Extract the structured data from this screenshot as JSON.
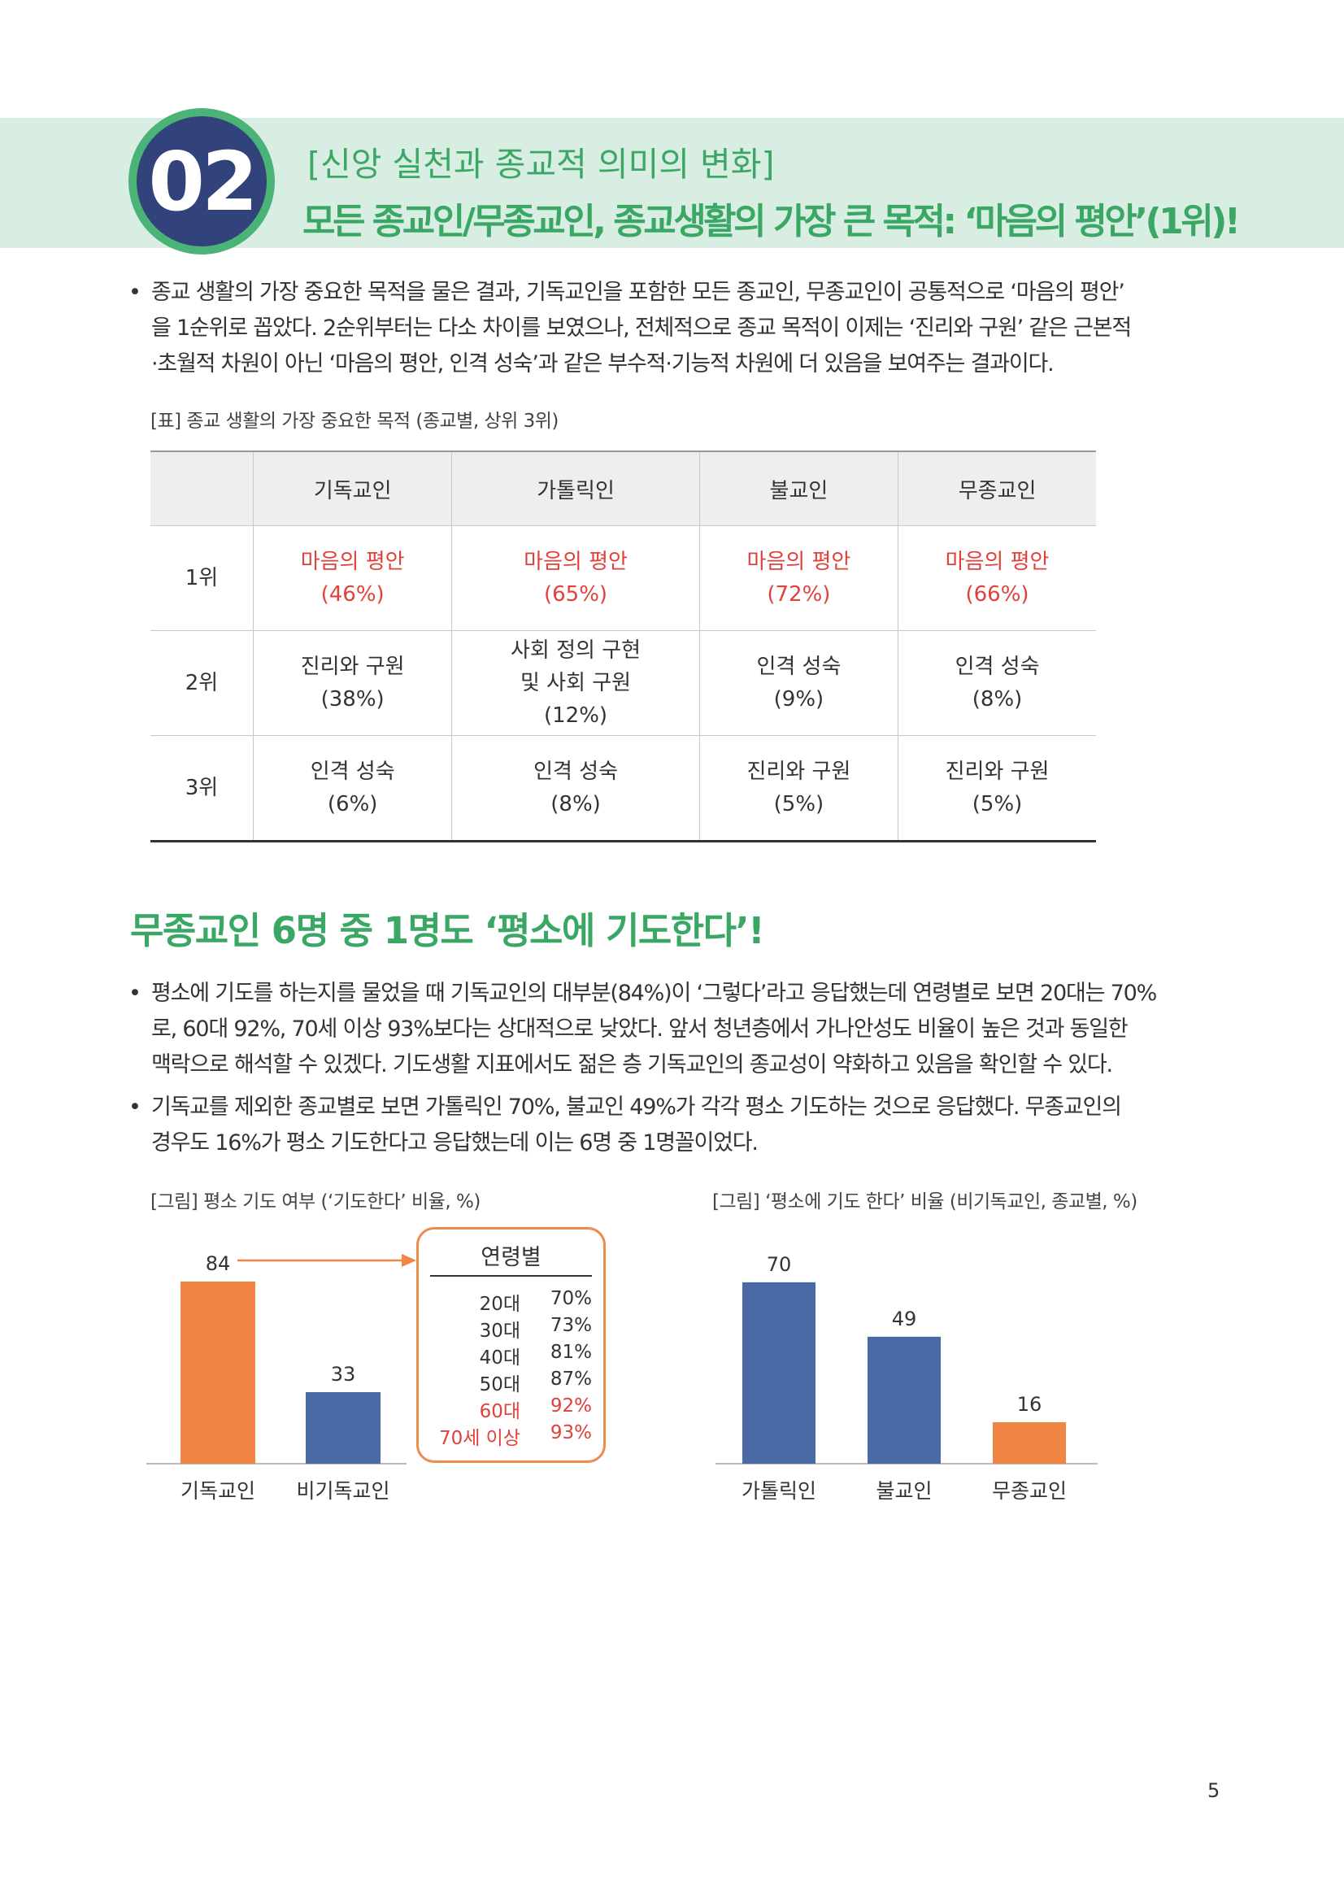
{
  "header": {
    "section_number": "02",
    "subtitle": "[신앙 실천과 종교적 의미의 변화]",
    "title": "모든 종교인/무종교인, 종교생활의 가장 큰 목적: ‘마음의 평안’(1위)!"
  },
  "intro": {
    "lines": [
      "종교 생활의 가장 중요한 목적을 물은 결과, 기독교인을 포함한 모든 종교인, 무종교인이 공통적으로 ‘마음의 평안’",
      "을 1순위로 꼽았다. 2순위부터는 다소 차이를 보였으나, 전체적으로 종교 목적이 이제는 ‘진리와 구원’ 같은 근본적",
      "·초월적 차원이 아닌 ‘마음의 평안, 인격 성숙’과 같은 부수적·기능적 차원에 더 있음을 보여주는 결과이다."
    ]
  },
  "table": {
    "caption": "[표] 종교 생활의 가장 중요한 목적 (종교별, 상위 3위)",
    "headers": [
      "",
      "기독교인",
      "가톨릭인",
      "불교인",
      "무종교인"
    ],
    "rows": [
      {
        "rank": "1위",
        "cells": [
          [
            "마음의 평안",
            "(46%)"
          ],
          [
            "마음의 평안",
            "(65%)"
          ],
          [
            "마음의 평안",
            "(72%)"
          ],
          [
            "마음의 평안",
            "(66%)"
          ]
        ]
      },
      {
        "rank": "2위",
        "cells": [
          [
            "진리와 구원",
            "(38%)"
          ],
          [
            "사회 정의 구현",
            "및 사회 구원",
            "(12%)"
          ],
          [
            "인격 성숙",
            "(9%)"
          ],
          [
            "인격 성숙",
            "(8%)"
          ]
        ]
      },
      {
        "rank": "3위",
        "cells": [
          [
            "인격 성숙",
            "(6%)"
          ],
          [
            "인격 성숙",
            "(8%)"
          ],
          [
            "진리와 구원",
            "(5%)"
          ],
          [
            "진리와 구원",
            "(5%)"
          ]
        ]
      }
    ]
  },
  "section2": {
    "title": "무종교인 6명 중 1명도 ‘평소에 기도한다’!",
    "bullet1": [
      "평소에 기도를 하는지를 물었을 때 기독교인의 대부분(84%)이 ‘그렇다’라고 응답했는데 연령별로 보면 20대는 70%",
      "로, 60대 92%, 70세 이상 93%보다는 상대적으로 낮았다. 앞서 청년층에서 가나안성도 비율이 높은 것과 동일한",
      "맥락으로 해석할 수 있겠다. 기도생활 지표에서도 젊은 층 기독교인의 종교성이 약화하고 있음을 확인할 수 있다."
    ],
    "bullet2": [
      "기독교를 제외한 종교별로 보면 가톨릭인 70%, 불교인 49%가 각각 평소 기도하는 것으로 응답했다. 무종교인의",
      "경우도 16%가 평소 기도한다고 응답했는데 이는 6명 중 1명꼴이었다."
    ]
  },
  "chart_data": [
    {
      "type": "bar",
      "title": "[그림] 평소 기도 여부 (‘기도한다’ 비율, %)",
      "categories": [
        "기독교인",
        "비기독교인"
      ],
      "values": [
        84,
        33
      ],
      "colors": [
        "#f08545",
        "#4a6aa5"
      ],
      "ylim": [
        0,
        90
      ],
      "inset": {
        "title": "연령별",
        "rows": [
          {
            "age": "20대",
            "value": "70%"
          },
          {
            "age": "30대",
            "value": "73%"
          },
          {
            "age": "40대",
            "value": "81%"
          },
          {
            "age": "50대",
            "value": "87%"
          },
          {
            "age": "60대",
            "value": "92%",
            "highlight": true
          },
          {
            "age": "70세 이상",
            "value": "93%",
            "highlight": true
          }
        ]
      }
    },
    {
      "type": "bar",
      "title": "[그림] ‘평소에 기도 한다’ 비율 (비기독교인, 종교별, %)",
      "categories": [
        "가톨릭인",
        "불교인",
        "무종교인"
      ],
      "values": [
        70,
        49,
        16
      ],
      "colors": [
        "#4a6aa5",
        "#4a6aa5",
        "#f08545"
      ],
      "ylim": [
        0,
        80
      ]
    }
  ],
  "page_number": "5",
  "colors": {
    "green": "#3aa765",
    "navy": "#32427a",
    "orange": "#f08545",
    "blue": "#4a6aa5",
    "red": "#e0413a"
  }
}
